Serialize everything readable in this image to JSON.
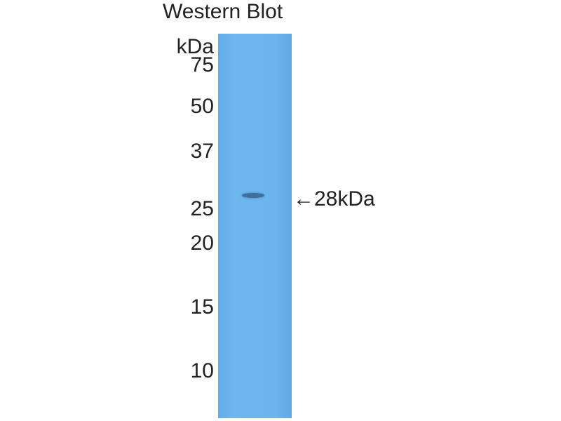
{
  "title": "Western Blot",
  "unit_label": "kDa",
  "markers": [
    "75",
    "50",
    "37",
    "25",
    "20",
    "15",
    "10"
  ],
  "band_annotation": {
    "arrow": "←",
    "label": "28kDa"
  },
  "colors": {
    "lane": "#6bb4ec",
    "band": "#3f6f9e"
  }
}
